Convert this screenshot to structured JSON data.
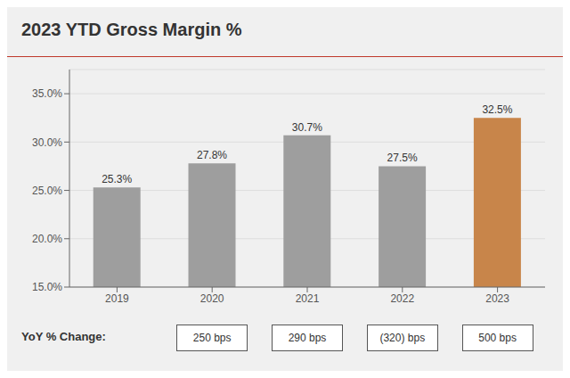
{
  "chart_data": {
    "type": "bar",
    "title": "2023 YTD Gross Margin %",
    "categories": [
      "2019",
      "2020",
      "2021",
      "2022",
      "2023"
    ],
    "values": [
      25.3,
      27.8,
      30.7,
      27.5,
      32.5
    ],
    "value_labels": [
      "25.3%",
      "27.8%",
      "30.7%",
      "27.5%",
      "32.5%"
    ],
    "data_labels": true,
    "colors": [
      "#9e9e9e",
      "#9e9e9e",
      "#9e9e9e",
      "#9e9e9e",
      "#c8854a"
    ],
    "ylim": [
      15.0,
      37.5
    ],
    "yticks": [
      {
        "value": 15.0,
        "label": "15.0%"
      },
      {
        "value": 20.0,
        "label": "20.0%"
      },
      {
        "value": 25.0,
        "label": "25.0%"
      },
      {
        "value": 30.0,
        "label": "30.0%"
      },
      {
        "value": 35.0,
        "label": "35.0%"
      }
    ],
    "grid": true,
    "annotations": [
      {
        "text": "YoY % Change:"
      },
      {
        "text": "250 bps",
        "category": "2020"
      },
      {
        "text": "290 bps",
        "category": "2021"
      },
      {
        "text": "(320) bps",
        "category": "2022"
      },
      {
        "text": "500 bps",
        "category": "2023"
      }
    ]
  }
}
